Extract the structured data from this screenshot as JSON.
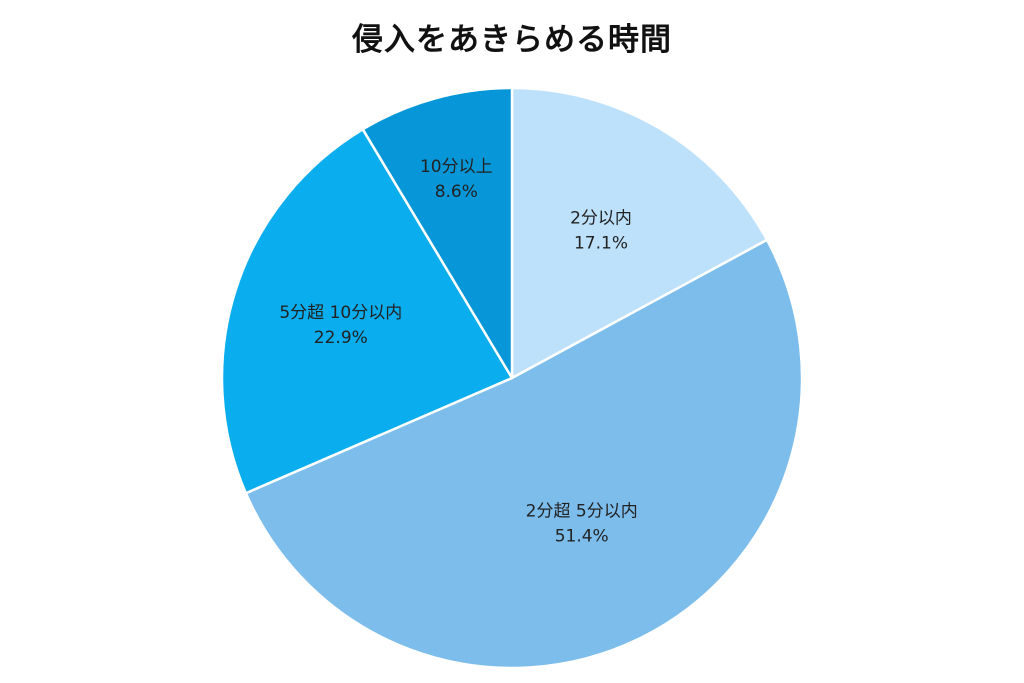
{
  "chart_data": {
    "type": "pie",
    "title": "侵入をあきらめる時間",
    "start_angle_deg": 0,
    "direction": "clockwise",
    "slices": [
      {
        "label": "2分以内",
        "value": 17.1,
        "display": "17.1%",
        "color": "#BDE0FB"
      },
      {
        "label": "2分超 5分以内",
        "value": 51.4,
        "display": "51.4%",
        "color": "#7CBDEC"
      },
      {
        "label": "5分超 10分以内",
        "value": 22.9,
        "display": "22.9%",
        "color": "#0AADEE"
      },
      {
        "label": "10分以上",
        "value": 8.6,
        "display": "8.6%",
        "color": "#0797D8"
      }
    ],
    "slice_border_color": "#FFFFFF"
  }
}
